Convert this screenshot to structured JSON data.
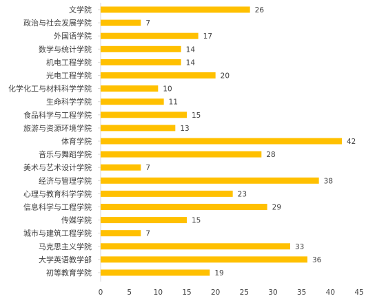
{
  "chart_data": {
    "type": "bar",
    "orientation": "horizontal",
    "categories": [
      "文学院",
      "政治与社会发展学院",
      "外国语学院",
      "数学与统计学院",
      "机电工程学院",
      "光电工程学院",
      "化学化工与材料科学学院",
      "生命科学学院",
      "食品科学与工程学院",
      "旅游与资源环境学院",
      "体育学院",
      "音乐与舞蹈学院",
      "美术与艺术设计学院",
      "经济与管理学院",
      "心理与教育科学学院",
      "信息科学与工程学院",
      "传媒学院",
      "城市与建筑工程学院",
      "马克思主义学院",
      "大学英语教学部",
      "初等教育学院"
    ],
    "values": [
      26,
      7,
      17,
      14,
      14,
      20,
      10,
      11,
      15,
      13,
      42,
      28,
      7,
      38,
      23,
      29,
      15,
      7,
      33,
      36,
      19
    ],
    "xlim": [
      0,
      45
    ],
    "xticks": [
      0,
      5,
      10,
      15,
      20,
      25,
      30,
      35,
      40,
      45
    ],
    "data_labels": true,
    "bar_color": "#FFC000",
    "grid": false,
    "legend": "none"
  }
}
